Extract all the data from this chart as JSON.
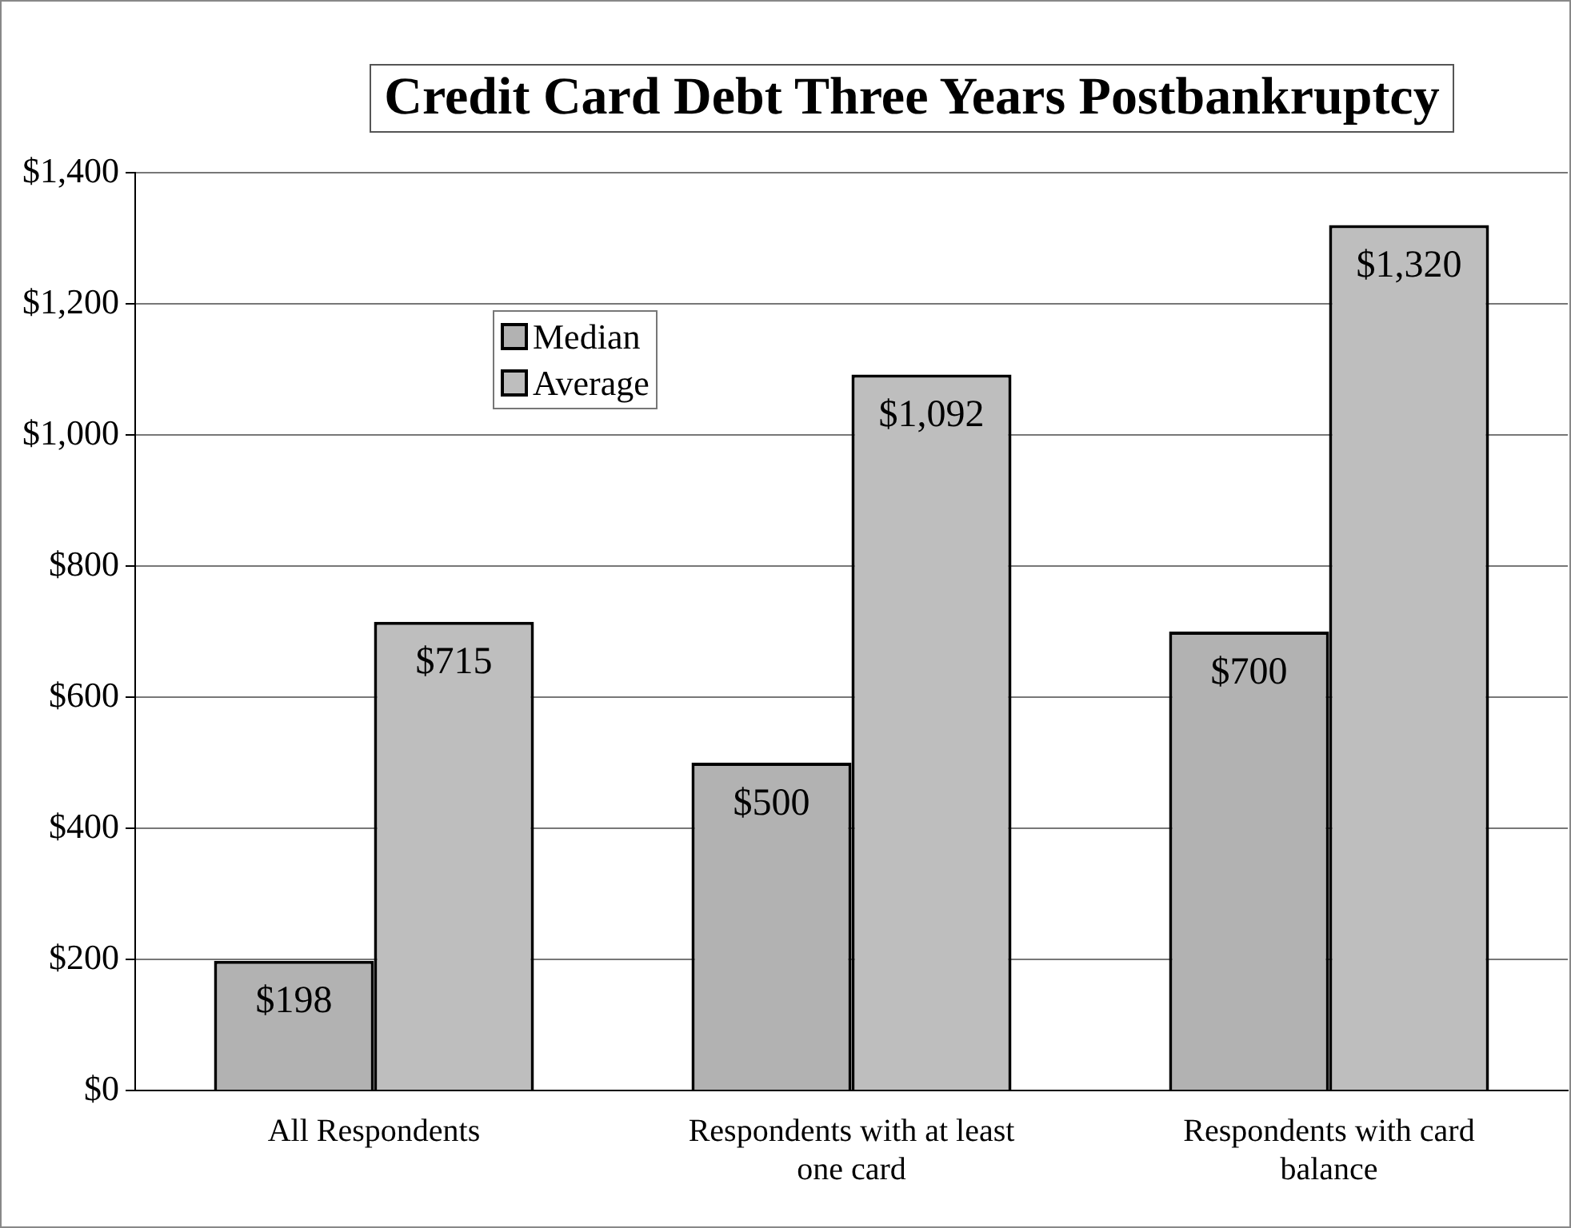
{
  "chart_data": {
    "type": "bar",
    "title": "Credit Card Debt Three Years Postbankruptcy",
    "categories": [
      "All Respondents",
      "Respondents with at least one card",
      "Respondents with card balance"
    ],
    "series": [
      {
        "name": "Median",
        "color": "#b2b2b2",
        "values": [
          198,
          500,
          700
        ]
      },
      {
        "name": "Average",
        "color": "#bebebe",
        "values": [
          715,
          1092,
          1320
        ]
      }
    ],
    "ylim": [
      0,
      1400
    ],
    "yticks": [
      {
        "value": 0,
        "label": "$0"
      },
      {
        "value": 200,
        "label": "$200"
      },
      {
        "value": 400,
        "label": "$400"
      },
      {
        "value": 600,
        "label": "$600"
      },
      {
        "value": 800,
        "label": "$800"
      },
      {
        "value": 1000,
        "label": "$1,000"
      },
      {
        "value": 1200,
        "label": "$1,200"
      },
      {
        "value": 1400,
        "label": "$1,400"
      }
    ],
    "value_labels": [
      [
        "$198",
        "$500",
        "$700"
      ],
      [
        "$715",
        "$1,092",
        "$1,320"
      ]
    ],
    "grid": "y",
    "legend": "top left"
  }
}
